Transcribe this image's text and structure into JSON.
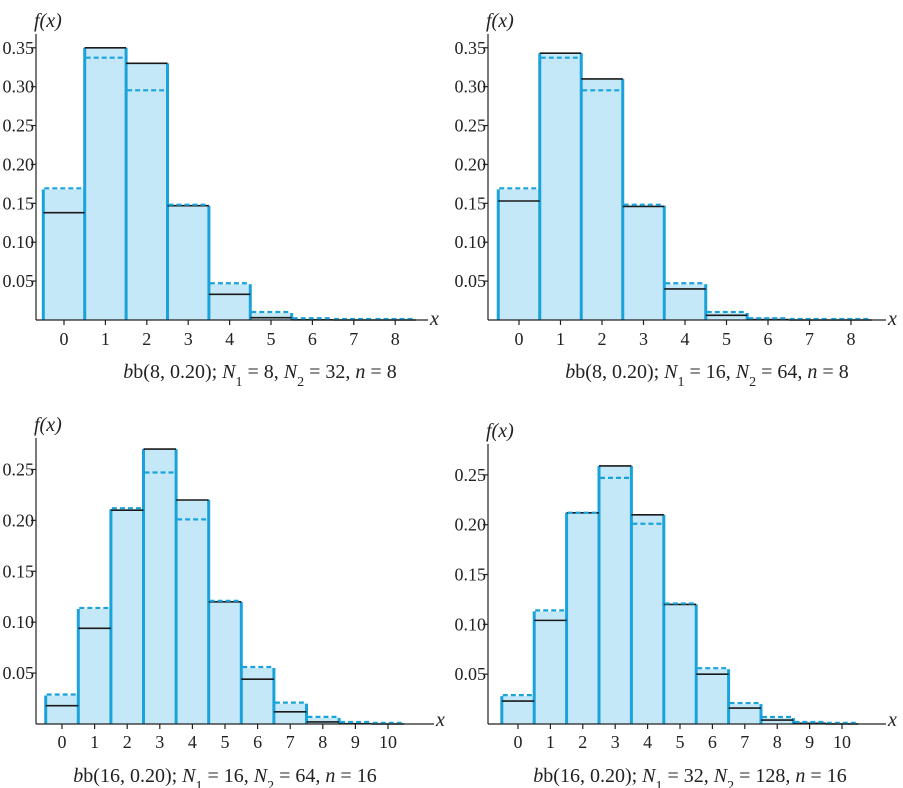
{
  "colors": {
    "bar_fill": "#c5e8f8",
    "bar_edge": "#1aa3db",
    "exact_line": "#1a1a1a",
    "approx_line": "#1aa3db",
    "axis": "#222222"
  },
  "chart_data": [
    {
      "type": "bar",
      "ylabel": "f(x)",
      "xlabel": "x",
      "caption": {
        "prefix": "b(8, 0.20); ",
        "N1": "8",
        "N2": "32",
        "n": "8"
      },
      "categories": [
        0,
        1,
        2,
        3,
        4,
        5,
        6,
        7,
        8
      ],
      "xticks": [
        "0",
        "1",
        "2",
        "3",
        "4",
        "5",
        "6",
        "7",
        "8"
      ],
      "yticks": [
        "0.05",
        "0.10",
        "0.15",
        "0.20",
        "0.25",
        "0.30",
        "0.35"
      ],
      "ylim": [
        0,
        0.36
      ],
      "hypergeometric": [
        0.138,
        0.35,
        0.33,
        0.147,
        0.033,
        0.003,
        0.0002,
        0.0,
        0.0
      ],
      "binomial": [
        0.168,
        0.336,
        0.294,
        0.147,
        0.046,
        0.009,
        0.001,
        0.0001,
        0.0
      ]
    },
    {
      "type": "bar",
      "ylabel": "f(x)",
      "xlabel": "x",
      "caption": {
        "prefix": "b(8, 0.20); ",
        "N1": "16",
        "N2": "64",
        "n": "8"
      },
      "categories": [
        0,
        1,
        2,
        3,
        4,
        5,
        6,
        7,
        8
      ],
      "xticks": [
        "0",
        "1",
        "2",
        "3",
        "4",
        "5",
        "6",
        "7",
        "8"
      ],
      "yticks": [
        "0.05",
        "0.10",
        "0.15",
        "0.20",
        "0.25",
        "0.30",
        "0.35"
      ],
      "ylim": [
        0,
        0.36
      ],
      "hypergeometric": [
        0.153,
        0.343,
        0.31,
        0.146,
        0.04,
        0.006,
        0.0006,
        0.0,
        0.0
      ],
      "binomial": [
        0.168,
        0.336,
        0.294,
        0.147,
        0.046,
        0.009,
        0.001,
        0.0001,
        0.0
      ]
    },
    {
      "type": "bar",
      "ylabel": "f(x)",
      "xlabel": "x",
      "caption": {
        "prefix": "b(16, 0.20); ",
        "N1": "16",
        "N2": "64",
        "n": "16"
      },
      "categories": [
        0,
        1,
        2,
        3,
        4,
        5,
        6,
        7,
        8,
        9,
        10
      ],
      "xticks": [
        "0",
        "1",
        "2",
        "3",
        "4",
        "5",
        "6",
        "7",
        "8",
        "9",
        "10"
      ],
      "yticks": [
        "0.05",
        "0.10",
        "0.15",
        "0.20",
        "0.25"
      ],
      "ylim": [
        0,
        0.275
      ],
      "hypergeometric": [
        0.018,
        0.094,
        0.21,
        0.27,
        0.22,
        0.12,
        0.044,
        0.012,
        0.002,
        0.0003,
        0.0
      ],
      "binomial": [
        0.028,
        0.113,
        0.211,
        0.246,
        0.2,
        0.12,
        0.055,
        0.02,
        0.006,
        0.001,
        0.0002
      ]
    },
    {
      "type": "bar",
      "ylabel": "f(x)",
      "xlabel": "x",
      "caption": {
        "prefix": "b(16, 0.20); ",
        "N1": "32",
        "N2": "128",
        "n": "16"
      },
      "categories": [
        0,
        1,
        2,
        3,
        4,
        5,
        6,
        7,
        8,
        9,
        10
      ],
      "xticks": [
        "0",
        "1",
        "2",
        "3",
        "4",
        "5",
        "6",
        "7",
        "8",
        "9",
        "10"
      ],
      "yticks": [
        "0.05",
        "0.10",
        "0.15",
        "0.20",
        "0.25"
      ],
      "ylim": [
        0,
        0.275
      ],
      "hypergeometric": [
        0.023,
        0.104,
        0.212,
        0.259,
        0.21,
        0.12,
        0.05,
        0.016,
        0.004,
        0.0007,
        0.0001
      ],
      "binomial": [
        0.028,
        0.113,
        0.211,
        0.246,
        0.2,
        0.12,
        0.055,
        0.02,
        0.006,
        0.001,
        0.0002
      ]
    }
  ]
}
